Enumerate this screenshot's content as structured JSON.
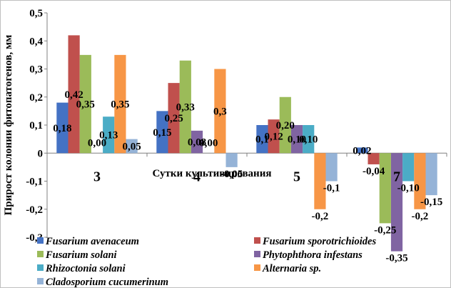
{
  "chart_data": {
    "type": "bar",
    "title": "",
    "xlabel": "Сутки культивирования",
    "ylabel": "Прирост колонии фитопатогенов, мм",
    "ylim": [
      -0.3,
      0.5
    ],
    "yticks": [
      -0.3,
      -0.2,
      -0.1,
      0,
      0.1,
      0.2,
      0.3,
      0.4,
      0.5
    ],
    "ytick_labels": [
      "-0,3",
      "-0,2",
      "-0,1",
      "0",
      "0,1",
      "0,2",
      "0,3",
      "0,4",
      "0,5"
    ],
    "grid": false,
    "legend_position": "bottom",
    "categories": [
      "3",
      "4",
      "5",
      "7"
    ],
    "series": [
      {
        "name": "Fusarium avenaceum",
        "color": "#4472C4",
        "values": [
          0.18,
          0.15,
          0.1,
          0.02
        ],
        "labels": [
          "0,18",
          "0,15",
          "0,1",
          "0,02"
        ]
      },
      {
        "name": "Fusarium sporotrichioides",
        "color": "#C0504D",
        "values": [
          0.42,
          0.25,
          0.12,
          -0.04
        ],
        "labels": [
          "0,42",
          "0,25",
          "0,12",
          "-0,04"
        ]
      },
      {
        "name": "Fusarium solani",
        "color": "#9BBB59",
        "values": [
          0.35,
          0.33,
          0.2,
          -0.25
        ],
        "labels": [
          "0,35",
          "0,33",
          "0,20",
          "-0,25"
        ]
      },
      {
        "name": "Phytophthora infestans",
        "color": "#8064A2",
        "values": [
          0.0,
          0.08,
          0.1,
          -0.35
        ],
        "labels": [
          "0,00",
          "0,08",
          "0,10",
          "-0,35"
        ]
      },
      {
        "name": "Rhizoctonia solani",
        "color": "#4BACC6",
        "values": [
          0.13,
          0.0,
          0.1,
          -0.1
        ],
        "labels": [
          "0,13",
          "0,00",
          "0,10",
          "-0,10"
        ]
      },
      {
        "name": "Alternaria sp.",
        "color": "#F79646",
        "values": [
          0.35,
          0.3,
          -0.2,
          -0.2
        ],
        "labels": [
          "0,35",
          "0,3",
          "-0,2",
          "-0,2"
        ]
      },
      {
        "name": "Cladosporium cucumerinum",
        "color": "#95B3D7",
        "values": [
          0.05,
          -0.05,
          -0.1,
          -0.15
        ],
        "labels": [
          "0,05",
          "-0,05",
          "-0,1",
          "-0,15"
        ]
      }
    ]
  }
}
